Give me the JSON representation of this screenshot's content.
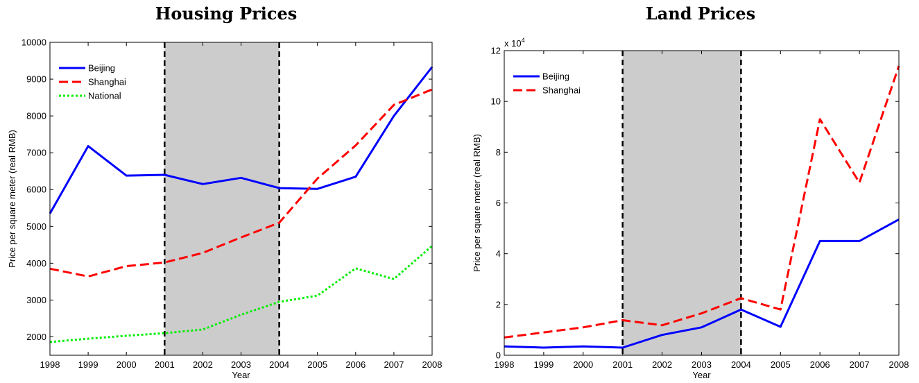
{
  "chart_data": [
    {
      "type": "line",
      "title": "Housing Prices",
      "xlabel": "Year",
      "ylabel": "Price per square meter (real RMB)",
      "x": [
        1998,
        1999,
        2000,
        2001,
        2002,
        2003,
        2004,
        2005,
        2006,
        2007,
        2008
      ],
      "xlim": [
        1998,
        2008
      ],
      "ylim": [
        1500,
        10000
      ],
      "xticks": [
        "1998",
        "1999",
        "2000",
        "2001",
        "2002",
        "2003",
        "2004",
        "2005",
        "2006",
        "2007",
        "2008"
      ],
      "yticks": [
        "2000",
        "3000",
        "4000",
        "5000",
        "6000",
        "7000",
        "8000",
        "9000",
        "10000"
      ],
      "ytick_values": [
        2000,
        3000,
        4000,
        5000,
        6000,
        7000,
        8000,
        9000,
        10000
      ],
      "shaded_region": [
        2001,
        2004
      ],
      "vlines": [
        2001,
        2004
      ],
      "grid": false,
      "legend_position": "top-left",
      "series": [
        {
          "name": "Beijing",
          "color": "#0000ff",
          "style": "solid",
          "values": [
            5350,
            7180,
            6380,
            6400,
            6150,
            6320,
            6040,
            6020,
            6350,
            8000,
            9330
          ]
        },
        {
          "name": "Shanghai",
          "color": "#ff0000",
          "style": "dashed",
          "values": [
            3850,
            3640,
            3920,
            4020,
            4280,
            4700,
            5100,
            6300,
            7200,
            8300,
            8720
          ]
        },
        {
          "name": "National",
          "color": "#00ee00",
          "style": "dotted",
          "values": [
            1860,
            1950,
            2030,
            2100,
            2200,
            2600,
            2950,
            3120,
            3860,
            3570,
            4470
          ]
        }
      ]
    },
    {
      "type": "line",
      "title": "Land Prices",
      "xlabel": "Year",
      "ylabel": "Price per square meter (real RMB)",
      "y_exponent_base": "x 10",
      "y_exponent_power": "4",
      "x": [
        1998,
        1999,
        2000,
        2001,
        2002,
        2003,
        2004,
        2005,
        2006,
        2007,
        2008
      ],
      "xlim": [
        1998,
        2008
      ],
      "ylim": [
        0,
        120000
      ],
      "xticks": [
        "1998",
        "1999",
        "2000",
        "2001",
        "2002",
        "2003",
        "2004",
        "2005",
        "2006",
        "2007",
        "2008"
      ],
      "yticks": [
        "0",
        "2",
        "4",
        "6",
        "8",
        "10",
        "12"
      ],
      "ytick_values": [
        0,
        20000,
        40000,
        60000,
        80000,
        100000,
        120000
      ],
      "shaded_region": [
        2001,
        2004
      ],
      "vlines": [
        2001,
        2004
      ],
      "grid": false,
      "legend_position": "top-left",
      "series": [
        {
          "name": "Beijing",
          "color": "#0000ff",
          "style": "solid",
          "values": [
            3500,
            3000,
            3500,
            3000,
            8000,
            11000,
            18000,
            11200,
            45000,
            45000,
            53500
          ]
        },
        {
          "name": "Shanghai",
          "color": "#ff0000",
          "style": "dashed",
          "values": [
            7000,
            9000,
            11000,
            13800,
            11800,
            16500,
            22500,
            18000,
            93000,
            68000,
            114000
          ]
        }
      ]
    }
  ]
}
